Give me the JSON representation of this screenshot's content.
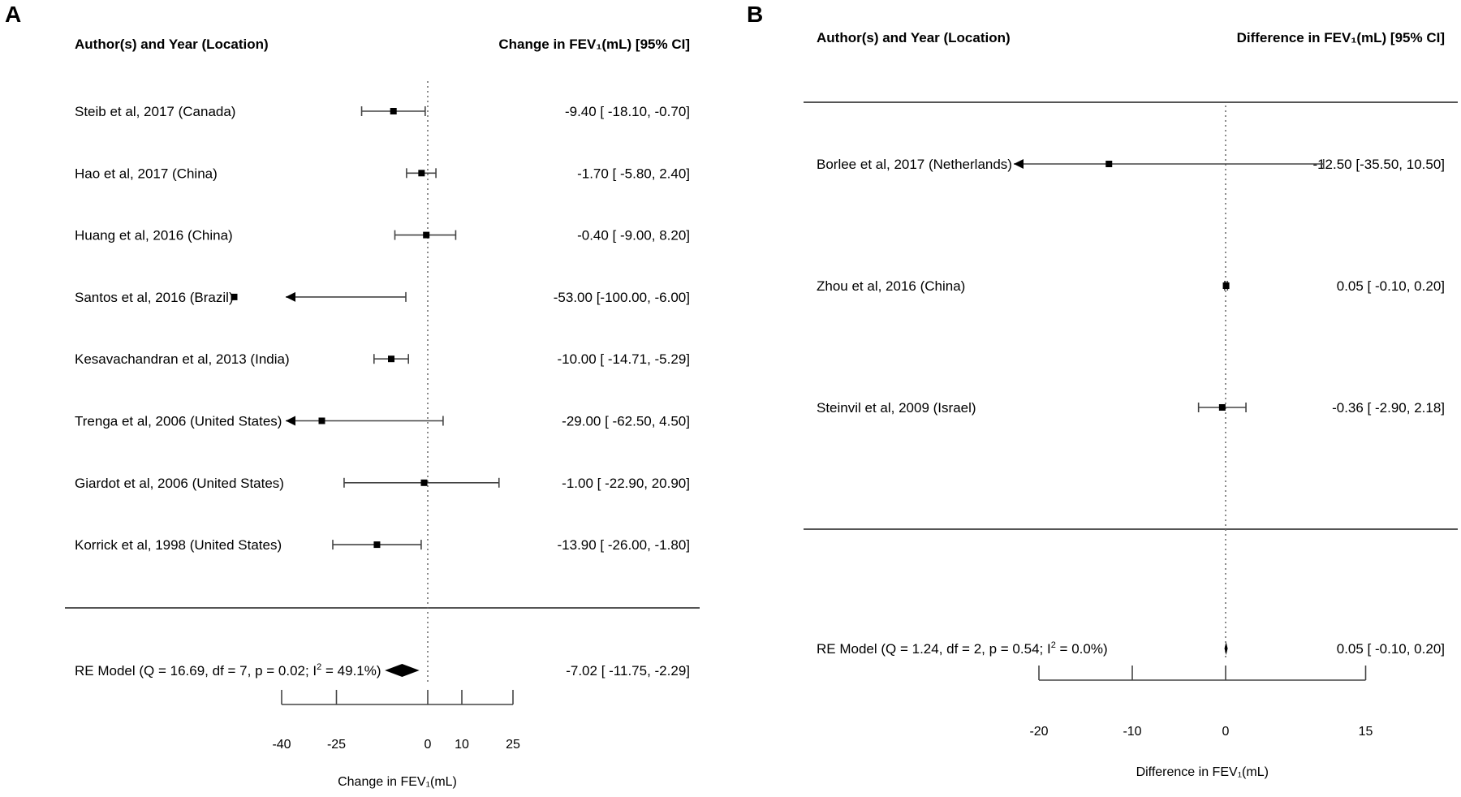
{
  "chart_data": [
    {
      "panel": "A",
      "type": "forest",
      "header_left": "Author(s) and Year (Location)",
      "header_right": "Change in FEV₁(mL) [95% CI]",
      "xlabel": "Change in FEV₁(mL)",
      "xticks": [
        -40,
        -25,
        0,
        10,
        25
      ],
      "xlim": [
        -40,
        25
      ],
      "studies": [
        {
          "label": "Steib et al, 2017 (Canada)",
          "est": -9.4,
          "lo": -18.1,
          "hi": -0.7,
          "ci_text": "-9.40 [ -18.10, -0.70]",
          "clipped_left": false
        },
        {
          "label": "Hao et al, 2017 (China)",
          "est": -1.7,
          "lo": -5.8,
          "hi": 2.4,
          "ci_text": "-1.70 [  -5.80,  2.40]",
          "clipped_left": false
        },
        {
          "label": "Huang et al, 2016 (China)",
          "est": -0.4,
          "lo": -9.0,
          "hi": 8.2,
          "ci_text": "-0.40 [  -9.00,  8.20]",
          "clipped_left": false
        },
        {
          "label": "Santos et al, 2016 (Brazil)",
          "est": -53.0,
          "lo": -100.0,
          "hi": -6.0,
          "ci_text": "-53.00 [-100.00, -6.00]",
          "clipped_left": true
        },
        {
          "label": "Kesavachandran et al, 2013 (India)",
          "est": -10.0,
          "lo": -14.71,
          "hi": -5.29,
          "ci_text": "-10.00 [ -14.71, -5.29]",
          "clipped_left": false
        },
        {
          "label": "Trenga et al, 2006 (United States)",
          "est": -29.0,
          "lo": -62.5,
          "hi": 4.5,
          "ci_text": "-29.00 [ -62.50,  4.50]",
          "clipped_left": true
        },
        {
          "label": "Giardot et al, 2006 (United States)",
          "est": -1.0,
          "lo": -22.9,
          "hi": 20.9,
          "ci_text": "-1.00 [ -22.90, 20.90]",
          "clipped_left": false
        },
        {
          "label": "Korrick et al, 1998 (United States)",
          "est": -13.9,
          "lo": -26.0,
          "hi": -1.8,
          "ci_text": "-13.90 [ -26.00, -1.80]",
          "clipped_left": false
        }
      ],
      "summary": {
        "label_pre": "RE Model (Q = 16.69, df = 7, p = 0.02; I",
        "label_sup": "2",
        "label_post": " = 49.1%)",
        "est": -7.02,
        "lo": -11.75,
        "hi": -2.29,
        "ci_text": "-7.02 [ -11.75, -2.29]"
      }
    },
    {
      "panel": "B",
      "type": "forest",
      "header_left": "Author(s) and Year (Location)",
      "header_right": "Difference in FEV₁(mL) [95% CI]",
      "xlabel": "Difference in FEV₁(mL)",
      "xticks": [
        -20,
        -10,
        0,
        15
      ],
      "xlim": [
        -20,
        15
      ],
      "studies": [
        {
          "label": "Borlee et al, 2017 (Netherlands)",
          "est": -12.5,
          "lo": -35.5,
          "hi": 10.5,
          "ci_text": "-12.50 [-35.50, 10.50]",
          "clipped_left": true
        },
        {
          "label": "Zhou et al, 2016 (China)",
          "est": 0.05,
          "lo": -0.1,
          "hi": 0.2,
          "ci_text": "0.05 [ -0.10,  0.20]",
          "clipped_left": false
        },
        {
          "label": "Steinvil et al, 2009 (Israel)",
          "est": -0.36,
          "lo": -2.9,
          "hi": 2.18,
          "ci_text": "-0.36 [ -2.90,  2.18]",
          "clipped_left": false
        }
      ],
      "summary": {
        "label_pre": "RE Model (Q = 1.24, df = 2, p = 0.54; I",
        "label_sup": "2",
        "label_post": " = 0.0%)",
        "est": 0.05,
        "lo": -0.1,
        "hi": 0.2,
        "ci_text": "0.05 [ -0.10,  0.20]"
      }
    }
  ],
  "panel_labels": {
    "a": "A",
    "b": "B"
  }
}
